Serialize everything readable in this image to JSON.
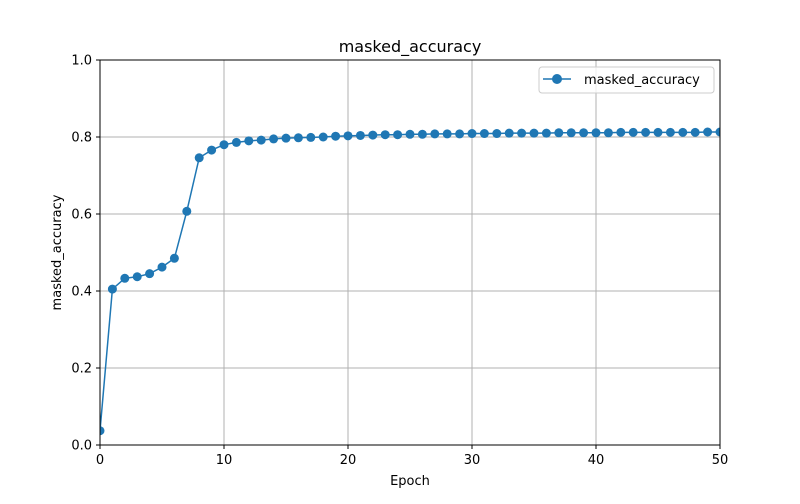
{
  "colors": {
    "series": "#1f77b4",
    "grid": "#b0b0b0",
    "axis": "#000000",
    "legend_border": "#cccccc"
  },
  "chart_data": {
    "type": "line",
    "title": "masked_accuracy",
    "xlabel": "Epoch",
    "ylabel": "masked_accuracy",
    "xlim": [
      0,
      50
    ],
    "ylim": [
      0,
      1.0
    ],
    "xticks": [
      0,
      10,
      20,
      30,
      40,
      50
    ],
    "xtick_labels": [
      "0",
      "10",
      "20",
      "30",
      "40",
      "50"
    ],
    "yticks": [
      0.0,
      0.2,
      0.4,
      0.6,
      0.8,
      1.0
    ],
    "ytick_labels": [
      "0.0",
      "0.2",
      "0.4",
      "0.6",
      "0.8",
      "1.0"
    ],
    "grid": true,
    "legend_position": "top-right",
    "marker": "circle",
    "series": [
      {
        "name": "masked_accuracy",
        "x": [
          0,
          1,
          2,
          3,
          4,
          5,
          6,
          7,
          8,
          9,
          10,
          11,
          12,
          13,
          14,
          15,
          16,
          17,
          18,
          19,
          20,
          21,
          22,
          23,
          24,
          25,
          26,
          27,
          28,
          29,
          30,
          31,
          32,
          33,
          34,
          35,
          36,
          37,
          38,
          39,
          40,
          41,
          42,
          43,
          44,
          45,
          46,
          47,
          48,
          49,
          50
        ],
        "values": [
          0.037,
          0.405,
          0.433,
          0.437,
          0.445,
          0.462,
          0.485,
          0.607,
          0.746,
          0.766,
          0.78,
          0.786,
          0.79,
          0.792,
          0.795,
          0.797,
          0.798,
          0.799,
          0.8,
          0.802,
          0.803,
          0.804,
          0.805,
          0.806,
          0.806,
          0.807,
          0.807,
          0.808,
          0.808,
          0.808,
          0.809,
          0.809,
          0.809,
          0.81,
          0.81,
          0.81,
          0.81,
          0.811,
          0.811,
          0.811,
          0.811,
          0.811,
          0.812,
          0.812,
          0.812,
          0.812,
          0.812,
          0.812,
          0.812,
          0.813,
          0.813
        ]
      }
    ]
  }
}
